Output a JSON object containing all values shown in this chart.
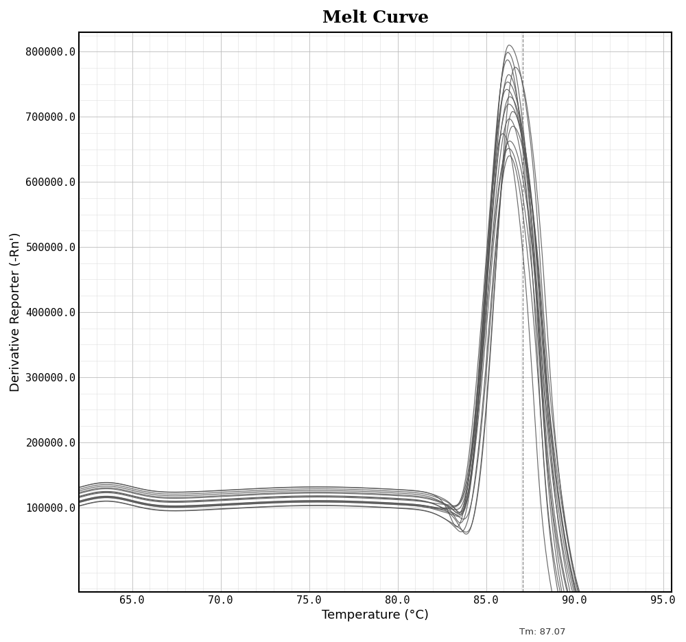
{
  "title": "Melt Curve",
  "xlabel": "Temperature (°C)",
  "ylabel": "Derivative Reporter (-Rn')",
  "xlim": [
    62.0,
    95.5
  ],
  "ylim": [
    -30000,
    830000
  ],
  "xticks": [
    65.0,
    70.0,
    75.0,
    80.0,
    85.0,
    90.0,
    95.0
  ],
  "yticks": [
    100000,
    200000,
    300000,
    400000,
    500000,
    600000,
    700000,
    800000
  ],
  "ytick_labels": [
    "100000.0",
    "200000.0",
    "300000.0",
    "400000.0",
    "500000.0",
    "600000.0",
    "700000.0",
    "800000.0"
  ],
  "tm_line_x": 87.07,
  "tm_label": "Tm: 87.07",
  "background_color": "#ffffff",
  "grid_major_color": "#bbbbbb",
  "grid_minor_color": "#dddddd",
  "line_color": "#555555",
  "n_curves": 16,
  "peak_temp": 86.3,
  "peak_height_max": 810000,
  "peak_height_min": 640000,
  "baseline_low": 90000,
  "baseline_high": 125000,
  "title_fontsize": 18,
  "axis_label_fontsize": 13,
  "tick_fontsize": 11
}
